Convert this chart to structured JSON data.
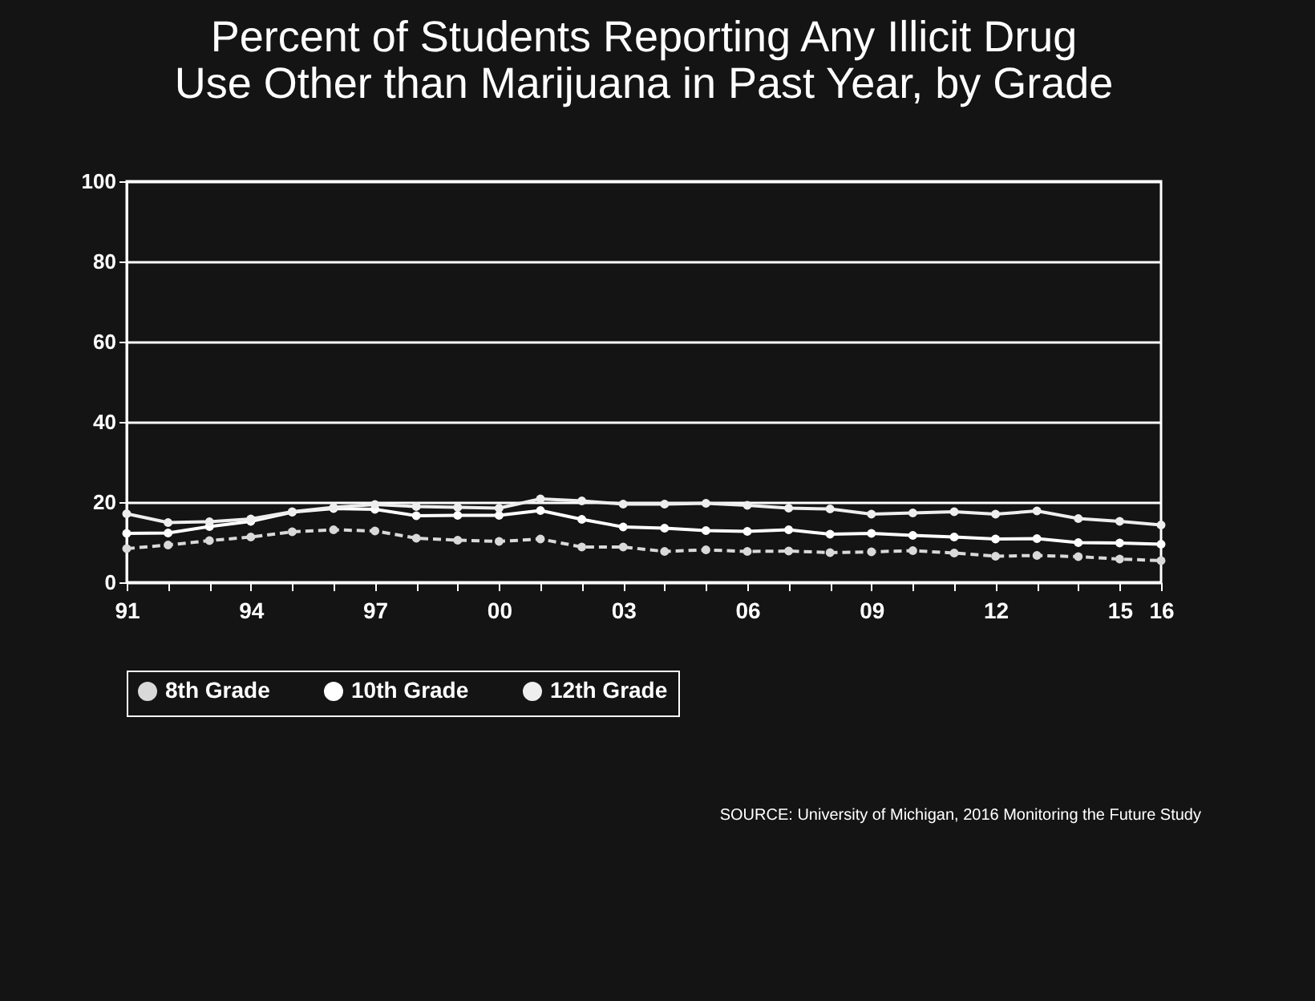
{
  "chart_data": {
    "type": "line",
    "title": "Percent of Students Reporting Any Illicit Drug\nUse Other than Marijuana in Past Year, by Grade",
    "x": [
      1991,
      1992,
      1993,
      1994,
      1995,
      1996,
      1997,
      1998,
      1999,
      2000,
      2001,
      2002,
      2003,
      2004,
      2005,
      2006,
      2007,
      2008,
      2009,
      2010,
      2011,
      2012,
      2013,
      2014,
      2015,
      2016
    ],
    "series": [
      {
        "name": "8th Grade",
        "color": "#d9d9d9",
        "line_style": "dashed",
        "values": [
          8.4,
          9.3,
          10.4,
          11.3,
          12.6,
          13.1,
          12.8,
          11.0,
          10.5,
          10.2,
          10.8,
          8.8,
          8.8,
          7.7,
          8.1,
          7.7,
          7.8,
          7.4,
          7.6,
          7.9,
          7.3,
          6.5,
          6.7,
          6.4,
          5.8,
          5.4
        ]
      },
      {
        "name": "10th Grade",
        "color": "#ffffff",
        "values": [
          12.2,
          12.3,
          13.9,
          15.2,
          17.5,
          18.4,
          18.2,
          16.6,
          16.7,
          16.7,
          17.9,
          15.7,
          13.8,
          13.5,
          12.9,
          12.7,
          13.1,
          12.0,
          12.2,
          11.7,
          11.3,
          10.8,
          10.9,
          9.9,
          9.8,
          9.5
        ]
      },
      {
        "name": "12th Grade",
        "color": "#eeeeee",
        "values": [
          17.1,
          14.9,
          15.1,
          15.8,
          17.6,
          18.7,
          19.4,
          18.9,
          18.7,
          18.5,
          20.8,
          20.3,
          19.5,
          19.5,
          19.7,
          19.2,
          18.5,
          18.3,
          17.0,
          17.3,
          17.6,
          17.0,
          17.8,
          15.9,
          15.2,
          14.3
        ]
      }
    ],
    "xlim": [
      1991,
      2016
    ],
    "xticks": [
      {
        "value": 1991,
        "label": "91"
      },
      {
        "value": 1992,
        "label": null
      },
      {
        "value": 1993,
        "label": null
      },
      {
        "value": 1994,
        "label": "94"
      },
      {
        "value": 1995,
        "label": null
      },
      {
        "value": 1996,
        "label": null
      },
      {
        "value": 1997,
        "label": "97"
      },
      {
        "value": 1998,
        "label": null
      },
      {
        "value": 1999,
        "label": null
      },
      {
        "value": 2000,
        "label": "00"
      },
      {
        "value": 2001,
        "label": null
      },
      {
        "value": 2002,
        "label": null
      },
      {
        "value": 2003,
        "label": "03"
      },
      {
        "value": 2004,
        "label": null
      },
      {
        "value": 2005,
        "label": null
      },
      {
        "value": 2006,
        "label": "06"
      },
      {
        "value": 2007,
        "label": null
      },
      {
        "value": 2008,
        "label": null
      },
      {
        "value": 2009,
        "label": "09"
      },
      {
        "value": 2010,
        "label": null
      },
      {
        "value": 2011,
        "label": null
      },
      {
        "value": 2012,
        "label": "12"
      },
      {
        "value": 2013,
        "label": null
      },
      {
        "value": 2014,
        "label": null
      },
      {
        "value": 2015,
        "label": "15"
      },
      {
        "value": 2016,
        "label": "16"
      }
    ],
    "ylim": [
      0,
      100
    ],
    "yticks": [
      0,
      20,
      40,
      60,
      80,
      100
    ],
    "grid": "y",
    "legend": "bottom",
    "marker": "circle",
    "annotations": [
      "SOURCE: University of Michigan, 2016 Monitoring the Future Study"
    ]
  }
}
